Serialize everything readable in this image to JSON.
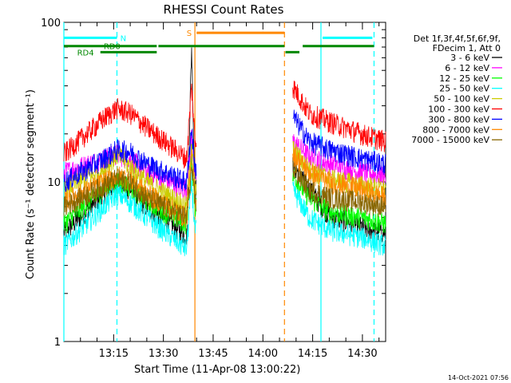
{
  "chart_data": {
    "type": "line",
    "title": "RHESSI Count Rates",
    "xlabel": "Start Time (11-Apr-08 13:00:22)",
    "ylabel": "Count Rate (s⁻¹ detector segment⁻¹)",
    "x_range_minutes": [
      0,
      97
    ],
    "ylim": [
      1,
      100
    ],
    "yscale": "log",
    "y_ticks": [
      {
        "v": 1,
        "label": "1"
      },
      {
        "v": 10,
        "label": "10"
      },
      {
        "v": 100,
        "label": "100"
      }
    ],
    "x_ticks": [
      {
        "m": 15,
        "label": "13:15"
      },
      {
        "m": 30,
        "label": "13:30"
      },
      {
        "m": 45,
        "label": "13:45"
      },
      {
        "m": 60,
        "label": "14:00"
      },
      {
        "m": 75,
        "label": "14:15"
      },
      {
        "m": 90,
        "label": "14:30"
      }
    ],
    "legend_header": [
      "Det 1f,3f,4f,5f,6f,9f,",
      "FDecim 1, Att 0"
    ],
    "legend_position": "right",
    "grid": false,
    "series": [
      {
        "name": "3 - 6 keV",
        "color": "#000000",
        "values": [
          [
            0,
            4.8
          ],
          [
            12,
            8.5
          ],
          [
            16,
            10
          ],
          [
            20,
            9
          ],
          [
            25,
            7
          ],
          [
            37,
            4.6
          ],
          [
            38.5,
            70
          ],
          [
            39.5,
            9
          ],
          [
            69,
            13
          ],
          [
            74,
            9
          ],
          [
            80,
            6.2
          ],
          [
            90,
            5.2
          ],
          [
            97,
            4.8
          ]
        ]
      },
      {
        "name": "6 - 12 keV",
        "color": "#ff00ff",
        "values": [
          [
            0,
            11.5
          ],
          [
            12,
            14
          ],
          [
            16,
            15
          ],
          [
            20,
            14
          ],
          [
            25,
            11.5
          ],
          [
            37,
            9
          ],
          [
            38.5,
            20
          ],
          [
            39.5,
            11
          ],
          [
            69,
            18
          ],
          [
            74,
            14.5
          ],
          [
            80,
            13
          ],
          [
            90,
            11.5
          ],
          [
            97,
            11
          ]
        ]
      },
      {
        "name": "12 - 25 keV",
        "color": "#00ff00",
        "values": [
          [
            0,
            5.5
          ],
          [
            12,
            9
          ],
          [
            16,
            10
          ],
          [
            20,
            9.5
          ],
          [
            25,
            7.5
          ],
          [
            37,
            5.5
          ],
          [
            38.5,
            15
          ],
          [
            39.5,
            7
          ],
          [
            69,
            11
          ],
          [
            74,
            8
          ],
          [
            80,
            6.5
          ],
          [
            90,
            6
          ],
          [
            97,
            5.5
          ]
        ]
      },
      {
        "name": "25 - 50 keV",
        "color": "#00ffff",
        "values": [
          [
            0,
            4
          ],
          [
            12,
            7
          ],
          [
            16,
            8.5
          ],
          [
            20,
            7.5
          ],
          [
            25,
            6
          ],
          [
            37,
            3.8
          ],
          [
            38.5,
            10
          ],
          [
            39.5,
            5
          ],
          [
            69,
            9
          ],
          [
            74,
            6
          ],
          [
            80,
            5
          ],
          [
            90,
            4.5
          ],
          [
            97,
            4
          ]
        ]
      },
      {
        "name": "50 - 100 keV",
        "color": "#cccc00",
        "values": [
          [
            0,
            9
          ],
          [
            12,
            12
          ],
          [
            16,
            15
          ],
          [
            20,
            12.5
          ],
          [
            25,
            10
          ],
          [
            37,
            7
          ],
          [
            38.5,
            18
          ],
          [
            39.5,
            9
          ],
          [
            69,
            16
          ],
          [
            74,
            12
          ],
          [
            80,
            10.5
          ],
          [
            90,
            9.5
          ],
          [
            97,
            9
          ]
        ]
      },
      {
        "name": "100 - 300 keV",
        "color": "#ff0000",
        "values": [
          [
            0,
            15
          ],
          [
            12,
            25
          ],
          [
            16,
            29
          ],
          [
            20,
            27
          ],
          [
            25,
            22
          ],
          [
            37,
            14
          ],
          [
            38.5,
            40
          ],
          [
            39.5,
            18
          ],
          [
            69,
            40
          ],
          [
            74,
            27
          ],
          [
            80,
            24
          ],
          [
            90,
            20
          ],
          [
            97,
            18
          ]
        ]
      },
      {
        "name": "300 - 800 keV",
        "color": "#0000ff",
        "values": [
          [
            0,
            10
          ],
          [
            12,
            14
          ],
          [
            16,
            16
          ],
          [
            20,
            15.5
          ],
          [
            25,
            13
          ],
          [
            37,
            10
          ],
          [
            38.5,
            22
          ],
          [
            39.5,
            12
          ],
          [
            69,
            26
          ],
          [
            74,
            18
          ],
          [
            80,
            16
          ],
          [
            90,
            14
          ],
          [
            97,
            13
          ]
        ]
      },
      {
        "name": "800 - 7000 keV",
        "color": "#ff8800",
        "values": [
          [
            0,
            7.5
          ],
          [
            12,
            10
          ],
          [
            16,
            11
          ],
          [
            20,
            10.5
          ],
          [
            25,
            8.5
          ],
          [
            37,
            6
          ],
          [
            38.5,
            14
          ],
          [
            39.5,
            8
          ],
          [
            69,
            15
          ],
          [
            74,
            11.5
          ],
          [
            80,
            10
          ],
          [
            90,
            9
          ],
          [
            97,
            8
          ]
        ]
      },
      {
        "name": "7000 - 15000 keV",
        "color": "#886600",
        "values": [
          [
            0,
            7
          ],
          [
            12,
            9.5
          ],
          [
            16,
            10.5
          ],
          [
            20,
            10
          ],
          [
            25,
            8
          ],
          [
            37,
            6
          ],
          [
            38.5,
            12
          ],
          [
            39.5,
            7.5
          ],
          [
            69,
            12
          ],
          [
            74,
            9
          ],
          [
            80,
            8
          ],
          [
            90,
            7.5
          ],
          [
            97,
            7
          ]
        ]
      }
    ],
    "data_gaps_minutes": [
      [
        40,
        69
      ]
    ],
    "markers": [
      {
        "type": "vline",
        "x": 0,
        "color": "#00ffff",
        "dash": false
      },
      {
        "type": "vline",
        "x": 16,
        "color": "#00ffff",
        "dash": true
      },
      {
        "type": "vline",
        "x": 39.5,
        "color": "#ff8800",
        "dash": false
      },
      {
        "type": "vline",
        "x": 66.5,
        "color": "#ff8800",
        "dash": true
      },
      {
        "type": "vline",
        "x": 77.5,
        "color": "#00ffff",
        "dash": false
      },
      {
        "type": "vline",
        "x": 93.5,
        "color": "#00ffff",
        "dash": true
      }
    ],
    "bars": [
      {
        "label": "N",
        "color": "#00ffff",
        "segments": [
          [
            0,
            16
          ],
          [
            78,
            93
          ]
        ],
        "y": 80,
        "label_x": 17
      },
      {
        "label": "S",
        "color": "#ff8800",
        "segments": [
          [
            40,
            66.5
          ]
        ],
        "y": 86,
        "label_x": 37
      },
      {
        "label": "RD0",
        "color": "#008800",
        "segments": [
          [
            0,
            28
          ],
          [
            28.5,
            66.5
          ],
          [
            72,
            93.5
          ]
        ],
        "y": 71,
        "label_x": 12
      },
      {
        "label": "RD4",
        "color": "#008800",
        "segments": [
          [
            11,
            28
          ],
          [
            66.8,
            71
          ]
        ],
        "y": 65,
        "label_x": 4
      }
    ]
  },
  "footer_timestamp": "14-Oct-2021 07:56"
}
